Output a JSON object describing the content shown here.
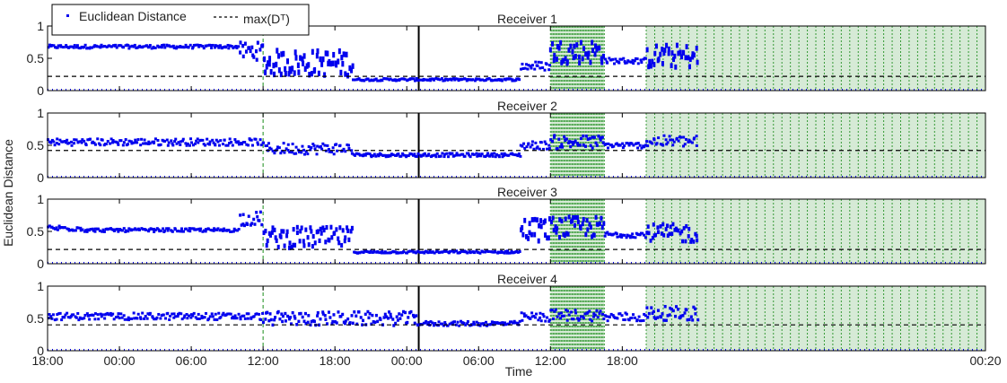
{
  "chart_data": {
    "type": "scatter",
    "ylabel": "Euclidean Distance",
    "xlabel": "Time",
    "x_ticks": [
      "18:00",
      "00:00",
      "06:00",
      "12:00",
      "18:00",
      "00:00",
      "06:00",
      "12:00",
      "18:00",
      "00:20"
    ],
    "y_ticks": [
      "0",
      "0.5",
      "1"
    ],
    "ylim": [
      0,
      1
    ],
    "legend": {
      "position": "top-left",
      "items": [
        {
          "label": "Euclidean Distance",
          "marker": "dot",
          "color": "#0000ee"
        },
        {
          "label": "max(Dᵀ)",
          "marker": "dashed-line",
          "color": "#000000"
        }
      ]
    },
    "colors": {
      "series": "#0000ee",
      "threshold": "#000000",
      "shade": "#1a8c1a",
      "marker_line": "#1a8c1a"
    },
    "events": {
      "dashed_vertical_at": "12:00 (first day)",
      "solid_vertical_at": "≈01:00 (second night)",
      "shaded_intervals": [
        [
          "12:00",
          "≈16:30"
        ],
        [
          "≈20:00",
          "00:20"
        ]
      ]
    },
    "panels": [
      {
        "title": "Receiver 1",
        "threshold": 0.22,
        "segments": [
          {
            "from": "18:00",
            "to": "10:00",
            "level": 0.68,
            "spread": 0.03
          },
          {
            "from": "10:00",
            "to": "12:00",
            "level": 0.62,
            "spread": 0.15
          },
          {
            "from": "12:00",
            "to": "19:30",
            "level": 0.45,
            "spread": 0.22
          },
          {
            "from": "19:30",
            "to": "09:30",
            "level": 0.17,
            "spread": 0.02
          },
          {
            "from": "09:30",
            "to": "12:00",
            "level": 0.38,
            "spread": 0.08
          },
          {
            "from": "12:00",
            "to": "16:30",
            "level": 0.62,
            "spread": 0.2
          },
          {
            "from": "16:30",
            "to": "20:00",
            "level": 0.46,
            "spread": 0.05
          },
          {
            "from": "20:00",
            "to": "00:20",
            "level": 0.55,
            "spread": 0.2
          }
        ]
      },
      {
        "title": "Receiver 2",
        "threshold": 0.42,
        "segments": [
          {
            "from": "18:00",
            "to": "12:00",
            "level": 0.55,
            "spread": 0.06
          },
          {
            "from": "12:00",
            "to": "19:30",
            "level": 0.45,
            "spread": 0.1
          },
          {
            "from": "19:30",
            "to": "09:30",
            "level": 0.35,
            "spread": 0.03
          },
          {
            "from": "09:30",
            "to": "12:00",
            "level": 0.5,
            "spread": 0.07
          },
          {
            "from": "12:00",
            "to": "16:30",
            "level": 0.55,
            "spread": 0.12
          },
          {
            "from": "16:30",
            "to": "20:00",
            "level": 0.5,
            "spread": 0.05
          },
          {
            "from": "20:00",
            "to": "00:20",
            "level": 0.56,
            "spread": 0.1
          }
        ]
      },
      {
        "title": "Receiver 3",
        "threshold": 0.22,
        "segments": [
          {
            "from": "18:00",
            "to": "21:00",
            "level": 0.55,
            "spread": 0.05
          },
          {
            "from": "21:00",
            "to": "10:00",
            "level": 0.52,
            "spread": 0.03
          },
          {
            "from": "10:00",
            "to": "12:00",
            "level": 0.7,
            "spread": 0.12
          },
          {
            "from": "12:00",
            "to": "19:30",
            "level": 0.42,
            "spread": 0.18
          },
          {
            "from": "19:30",
            "to": "09:30",
            "level": 0.18,
            "spread": 0.02
          },
          {
            "from": "09:30",
            "to": "12:00",
            "level": 0.55,
            "spread": 0.2
          },
          {
            "from": "12:00",
            "to": "16:30",
            "level": 0.58,
            "spread": 0.18
          },
          {
            "from": "16:30",
            "to": "20:00",
            "level": 0.45,
            "spread": 0.05
          },
          {
            "from": "20:00",
            "to": "00:20",
            "level": 0.48,
            "spread": 0.16
          }
        ]
      },
      {
        "title": "Receiver 4",
        "threshold": 0.4,
        "segments": [
          {
            "from": "18:00",
            "to": "12:00",
            "level": 0.53,
            "spread": 0.06
          },
          {
            "from": "12:00",
            "to": "01:00",
            "level": 0.5,
            "spread": 0.12
          },
          {
            "from": "01:00",
            "to": "09:30",
            "level": 0.42,
            "spread": 0.04
          },
          {
            "from": "09:30",
            "to": "12:00",
            "level": 0.52,
            "spread": 0.08
          },
          {
            "from": "12:00",
            "to": "16:30",
            "level": 0.55,
            "spread": 0.1
          },
          {
            "from": "16:30",
            "to": "20:00",
            "level": 0.52,
            "spread": 0.08
          },
          {
            "from": "20:00",
            "to": "00:20",
            "level": 0.58,
            "spread": 0.12
          }
        ]
      }
    ]
  }
}
